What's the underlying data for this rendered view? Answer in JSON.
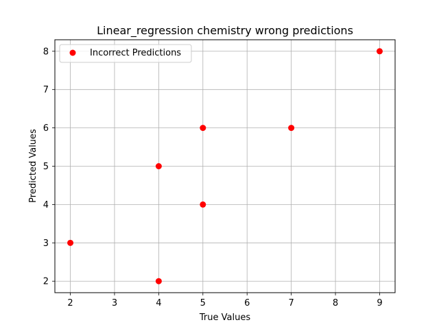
{
  "chart_data": {
    "type": "scatter",
    "title": "Linear_regression chemistry wrong predictions",
    "xlabel": "True Values",
    "ylabel": "Predicted Values",
    "xlim": [
      1.65,
      9.35
    ],
    "ylim": [
      1.7,
      8.3
    ],
    "xticks": [
      2,
      3,
      4,
      5,
      6,
      7,
      8,
      9
    ],
    "yticks": [
      2,
      3,
      4,
      5,
      6,
      7,
      8
    ],
    "grid": true,
    "legend_position": "upper-left",
    "series": [
      {
        "name": "Incorrect Predictions",
        "color": "#ff0000",
        "points": [
          {
            "x": 2,
            "y": 3
          },
          {
            "x": 4,
            "y": 2
          },
          {
            "x": 4,
            "y": 5
          },
          {
            "x": 5,
            "y": 6
          },
          {
            "x": 5,
            "y": 4
          },
          {
            "x": 7,
            "y": 6
          },
          {
            "x": 9,
            "y": 8
          }
        ]
      }
    ]
  }
}
